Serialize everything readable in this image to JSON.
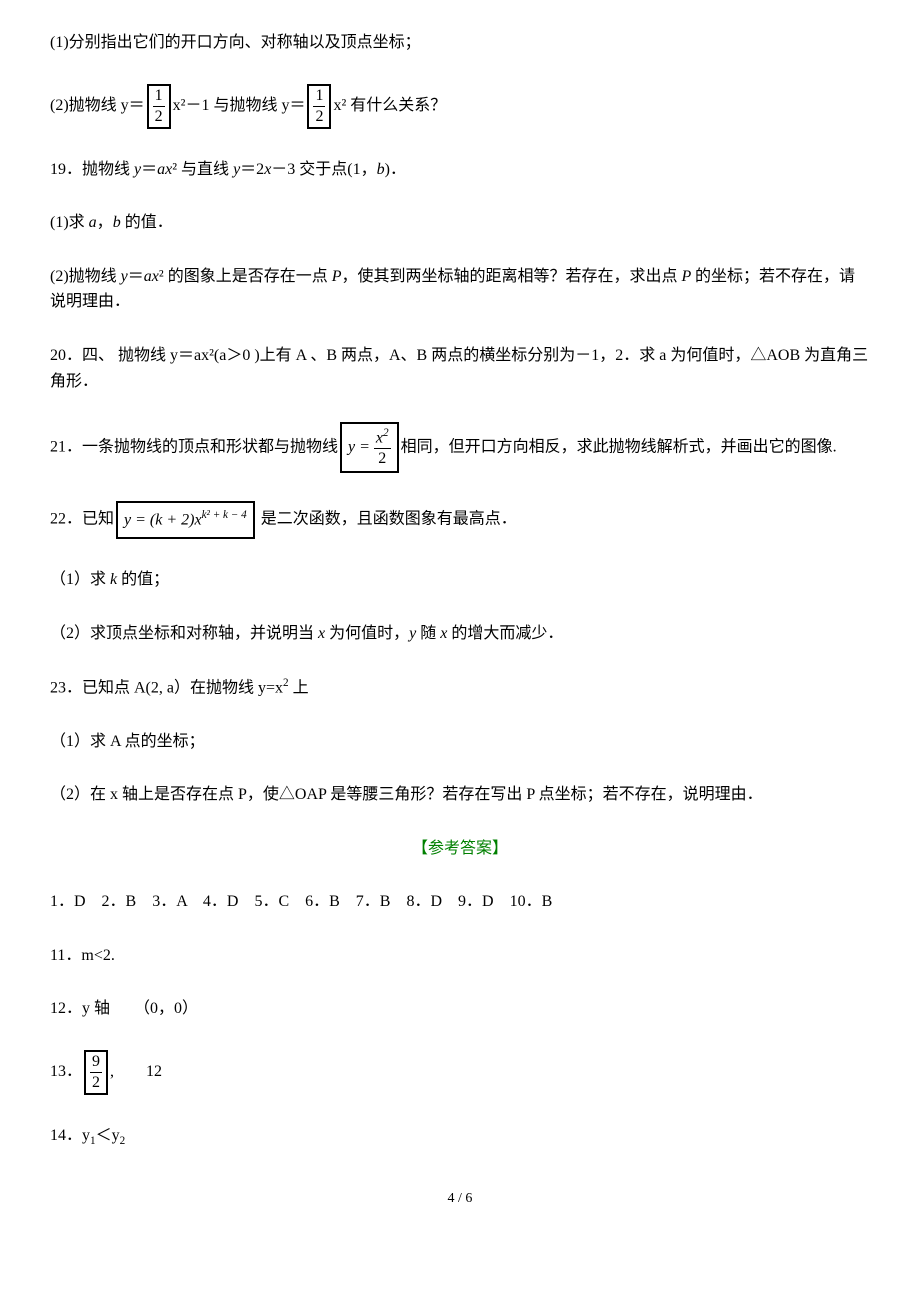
{
  "q_part1": "(1)分别指出它们的开口方向、对称轴以及顶点坐标；",
  "q18_line_a": "(2)抛物线 y＝",
  "frac_1_2_num": "1",
  "frac_1_2_den": "2",
  "q18_line_b": "x²－1 与抛物线 y＝",
  "q18_line_c": "x² 有什么关系？",
  "q19_main": "19．抛物线 ",
  "q19_eq1a": "y",
  "q19_eq1b": "＝",
  "q19_eq1c": "ax",
  "q19_eq1d": "² 与直线 ",
  "q19_eq2a": "y",
  "q19_eq2b": "＝2",
  "q19_eq2c": "x",
  "q19_eq2d": "－3 交于点(1，",
  "q19_eq2e": "b",
  "q19_eq2f": ")．",
  "q19_1a": "(1)求 ",
  "q19_1b": "a",
  "q19_1c": "，",
  "q19_1d": "b ",
  "q19_1e": "的值．",
  "q19_2a": "(2)抛物线 ",
  "q19_2b": "y",
  "q19_2c": "＝",
  "q19_2d": "ax",
  "q19_2e": "² 的图象上是否存在一点 ",
  "q19_2f": "P",
  "q19_2g": "，使其到两坐标轴的距离相等？若存在，求出点 ",
  "q19_2h": "P ",
  "q19_2i": "的坐标；若不存在，请说明理由．",
  "q20": "20．四、 抛物线 y＝ax²(a＞0 )上有 A 、B 两点，A、B 两点的横坐标分别为－1，2．求 a 为何值时，△AOB 为直角三角形．",
  "q21_a": "21．一条抛物线的顶点和形状都与抛物线",
  "q21_eq_y": "y = ",
  "q21_eq_num": "x",
  "q21_eq_sup": "2",
  "q21_eq_den": "2",
  "q21_b": "相同，但开口方向相反，求此抛物线解析式，并画出它的图像.",
  "q22_a": "22．已知",
  "q22_eq": "y = (k + 2)x",
  "q22_exp": "k² + k − 4",
  "q22_b": " 是二次函数，且函数图象有最高点．",
  "q22_1a": "（1）求 ",
  "q22_1b": "k ",
  "q22_1c": "的值；",
  "q22_2a": "（2）求顶点坐标和对称轴，并说明当 ",
  "q22_2b": "x ",
  "q22_2c": "为何值时，",
  "q22_2d": "y ",
  "q22_2e": "随 ",
  "q22_2f": "x ",
  "q22_2g": "的增大而减少．",
  "q23_a": "23．已知点 A(2, a）在抛物线 y=x",
  "q23_b": " 上",
  "q23_1": "（1）求 A 点的坐标；",
  "q23_2": "（2）在 x 轴上是否存在点 P，使△OAP 是等腰三角形？若存在写出 P 点坐标；若不存在，说明理由．",
  "ans_title": "【参考答案】",
  "ans_1_10": "1．D　2．B　3．A　4．D　5．C　6．B　7．B　8．D　9．D　10．B",
  "ans_11": "11．m<2.",
  "ans_12": "12．y 轴　　（0，0）",
  "ans_13_a": "13．",
  "ans_13_num": "9",
  "ans_13_den": "2",
  "ans_13_b": ",　　12",
  "ans_14_a": "14．y",
  "ans_14_b": "＜",
  "ans_14_c": "y",
  "page_num": "4 / 6"
}
